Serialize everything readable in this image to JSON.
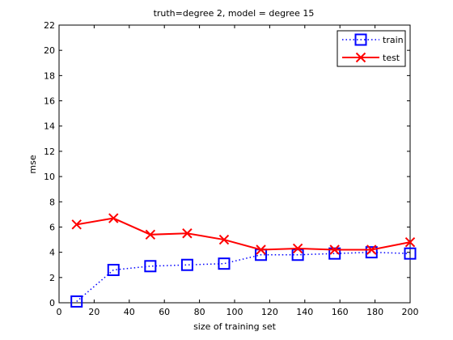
{
  "chart_data": {
    "type": "line",
    "title": "truth=degree 2, model = degree 15",
    "xlabel": "size of training set",
    "ylabel": "mse",
    "xlim": [
      0,
      200
    ],
    "ylim": [
      0,
      22
    ],
    "xticks": [
      0,
      20,
      40,
      60,
      80,
      100,
      120,
      140,
      160,
      180,
      200
    ],
    "yticks": [
      0,
      2,
      4,
      6,
      8,
      10,
      12,
      14,
      16,
      18,
      20,
      22
    ],
    "grid": false,
    "legend_position": "top-right",
    "x": [
      10,
      31,
      52,
      73,
      94,
      115,
      136,
      157,
      178,
      200
    ],
    "series": [
      {
        "name": "train",
        "color": "#0000ff",
        "line_style": "dotted",
        "marker": "square",
        "values": [
          0.1,
          2.6,
          2.9,
          3.0,
          3.1,
          3.8,
          3.8,
          3.9,
          4.0,
          3.9
        ]
      },
      {
        "name": "test",
        "color": "#ff0000",
        "line_style": "solid",
        "marker": "x",
        "values": [
          6.2,
          6.7,
          5.4,
          5.5,
          5.0,
          4.2,
          4.3,
          4.2,
          4.2,
          4.8
        ]
      }
    ]
  }
}
